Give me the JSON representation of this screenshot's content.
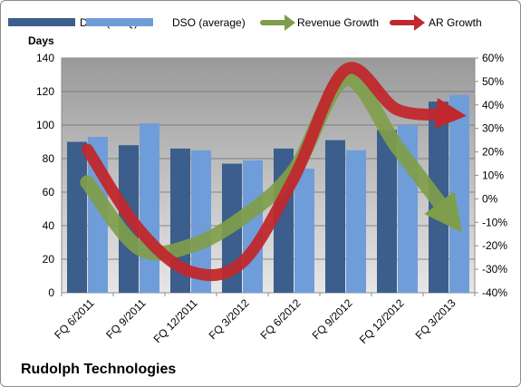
{
  "company": "Rudolph Technologies",
  "chart_data": {
    "type": "bar",
    "categories": [
      "FQ 6/2011",
      "FQ 9/2011",
      "FQ 12/2011",
      "FQ 3/2012",
      "FQ 6/2012",
      "FQ 9/2012",
      "FQ 12/2012",
      "FQ 3/2013"
    ],
    "series": [
      {
        "name": "DSO (EOQ)",
        "type": "bar",
        "axis": "left",
        "color": "#3b5e8c",
        "values": [
          90,
          88,
          86,
          77,
          86,
          91,
          97,
          114
        ]
      },
      {
        "name": "DSO (average)",
        "type": "bar",
        "axis": "left",
        "color": "#6f9dd9",
        "values": [
          93,
          101,
          85,
          79,
          74,
          85,
          100,
          118
        ]
      },
      {
        "name": "Revenue Growth",
        "type": "arrow-line",
        "axis": "right",
        "color": "#7f9e4b",
        "values": [
          7,
          -21,
          -20,
          -8,
          12,
          51,
          22,
          -7
        ]
      },
      {
        "name": "AR Growth",
        "type": "arrow-line",
        "axis": "right",
        "color": "#c0282d",
        "values": [
          21,
          -13,
          -31,
          -27,
          9,
          55,
          38,
          36
        ]
      }
    ],
    "ylabel": "Days",
    "ylim": [
      0,
      140
    ],
    "yticks": [
      0,
      20,
      40,
      60,
      80,
      100,
      120,
      140
    ],
    "y2lim": [
      -40,
      60
    ],
    "y2ticks": [
      "-40%",
      "-30%",
      "-20%",
      "-10%",
      "0%",
      "10%",
      "20%",
      "30%",
      "40%",
      "50%",
      "60%"
    ],
    "grid": true,
    "legend_position": "top"
  }
}
